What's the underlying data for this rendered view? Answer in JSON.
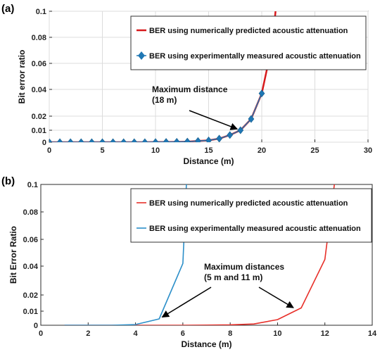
{
  "chart_data": [
    {
      "type": "line",
      "panel_label": "(a)",
      "xlabel": "Distance (m)",
      "ylabel": "Bit error ratio",
      "xlim": [
        0,
        30
      ],
      "ylim": [
        0,
        0.1
      ],
      "xticks": [
        "0",
        "5",
        "10",
        "15",
        "20",
        "25",
        "30"
      ],
      "yticks": [
        "0",
        "0.01",
        "0.02",
        "0.04",
        "0.06",
        "0.08",
        "0.1"
      ],
      "grid": true,
      "legend_position": "top-right",
      "series": [
        {
          "name": "BER using numerically predicted acoustic attenuation",
          "color": "#d7191c",
          "style": "line",
          "x": [
            0,
            1,
            2,
            3,
            4,
            5,
            6,
            7,
            8,
            9,
            10,
            11,
            12,
            13,
            14,
            15,
            16,
            17,
            18,
            19,
            20,
            21,
            21.3
          ],
          "y": [
            0,
            0,
            0,
            0,
            0,
            0,
            0,
            0,
            0,
            0,
            0.0001,
            0.0002,
            0.0003,
            0.0005,
            0.001,
            0.0015,
            0.003,
            0.006,
            0.01,
            0.018,
            0.037,
            0.075,
            0.1
          ]
        },
        {
          "name": "BER using experimentally measured acoustic attenuation",
          "color": "#1f77b4",
          "style": "diamond",
          "x": [
            0,
            1,
            2,
            3,
            4,
            5,
            6,
            7,
            8,
            9,
            10,
            11,
            12,
            13,
            14,
            15,
            16,
            17,
            18,
            19,
            20
          ],
          "y": [
            0,
            0,
            0,
            0,
            0,
            0,
            0,
            0,
            0,
            0,
            0.0001,
            0.0002,
            0.0003,
            0.0005,
            0.001,
            0.0015,
            0.003,
            0.006,
            0.01,
            0.018,
            0.037
          ]
        }
      ],
      "annotation": {
        "lines": [
          "Maximum distance",
          "(18 m)"
        ],
        "target_x": 18,
        "target_y": 0.01
      }
    },
    {
      "type": "line",
      "panel_label": "(b)",
      "xlabel": "Distance (m)",
      "ylabel": "Bit Error Ratio",
      "xlim": [
        0,
        14
      ],
      "ylim": [
        0,
        0.1
      ],
      "xticks": [
        "0",
        "2",
        "4",
        "6",
        "8",
        "10",
        "12",
        "14"
      ],
      "yticks": [
        "0",
        "0.01",
        "0.02",
        "0.04",
        "0.06",
        "0.08",
        "0.1"
      ],
      "grid": false,
      "legend_position": "top-right",
      "series": [
        {
          "name": "BER using numerically predicted acoustic attenuation",
          "color": "#e8302a",
          "style": "line",
          "x": [
            1,
            2,
            3,
            4,
            5,
            6,
            7,
            8,
            9,
            10,
            11,
            12,
            12.4
          ],
          "y": [
            0,
            0,
            0,
            0,
            0,
            0,
            0.0001,
            0.0003,
            0.0009,
            0.004,
            0.012,
            0.045,
            0.1
          ]
        },
        {
          "name": "BER using experimentally measured acoustic attenuation",
          "color": "#2c8fc9",
          "style": "line",
          "x": [
            1,
            2,
            3,
            4,
            5,
            6,
            6.15
          ],
          "y": [
            0,
            0,
            0,
            0.0005,
            0.0045,
            0.042,
            0.1
          ]
        }
      ],
      "annotation": {
        "lines": [
          "Maximum distances",
          "(5 m and 11 m)"
        ],
        "targets": [
          {
            "x": 5,
            "y": 0.0045
          },
          {
            "x": 10.8,
            "y": 0.011
          }
        ]
      }
    }
  ]
}
